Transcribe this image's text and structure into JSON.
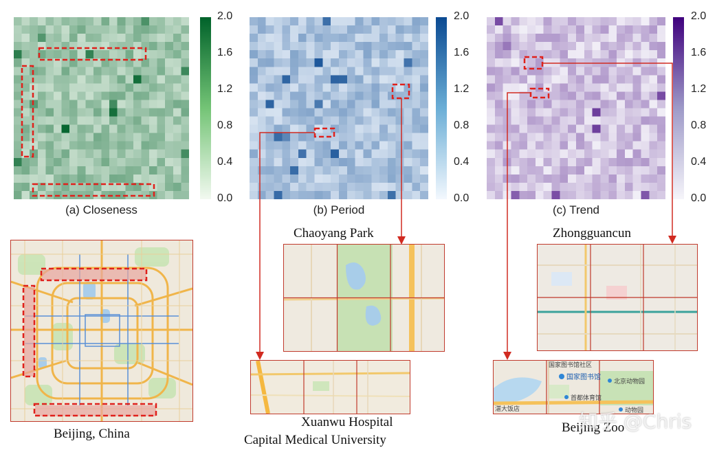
{
  "panels": [
    {
      "id": "closeness",
      "caption": "(a) Closeness",
      "colormap": "greens",
      "low": "#f2f9f0",
      "high": "#00622a",
      "colorbar_ticks": [
        "2.0",
        "1.6",
        "1.2",
        "0.8",
        "0.4",
        "0.0"
      ]
    },
    {
      "id": "period",
      "caption": "(b) Period",
      "colormap": "blues",
      "low": "#f3f8fe",
      "high": "#0b4a92",
      "colorbar_ticks": [
        "2.0",
        "1.6",
        "1.2",
        "0.8",
        "0.4",
        "0.0"
      ]
    },
    {
      "id": "trend",
      "caption": "(c) Trend",
      "colormap": "purples",
      "low": "#f6f5fa",
      "high": "#3f007d",
      "colorbar_ticks": [
        "2.0",
        "1.6",
        "1.2",
        "0.8",
        "0.4",
        "0.0"
      ]
    }
  ],
  "value_range": [
    0.0,
    2.0
  ],
  "labels": {
    "beijing": "Beijing, China",
    "chaoyang": "Chaoyang Park",
    "xuanwu_1": "Xuanwu Hospital",
    "xuanwu_2": "Capital Medical University",
    "zhongguancun": "Zhongguancun",
    "zoo": "Beijing Zoo"
  },
  "map_text": {
    "zoo_library_community": "国家图书馆社区",
    "zoo_library": "国家图书馆",
    "zoo_zoo": "北京动物园",
    "zoo_museum": "首都体育馆",
    "zoo_hotel": "湛大饭店",
    "zoo_animal": "动物园"
  },
  "watermark": "知乎 @Chris",
  "highlight_color": "#e0201b"
}
